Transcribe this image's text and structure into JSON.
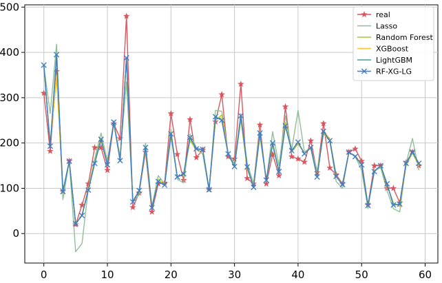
{
  "chart_data": {
    "type": "line",
    "grid": true,
    "legend_position": "top-right",
    "xlim": [
      -3,
      62
    ],
    "ylim": [
      -65,
      505
    ],
    "xticks": [
      0,
      10,
      20,
      30,
      40,
      50,
      60
    ],
    "yticks": [
      0,
      100,
      200,
      300,
      400,
      500
    ],
    "x": [
      0,
      1,
      2,
      3,
      4,
      5,
      6,
      7,
      8,
      9,
      10,
      11,
      12,
      13,
      14,
      15,
      16,
      17,
      18,
      19,
      20,
      21,
      22,
      23,
      24,
      25,
      26,
      27,
      28,
      29,
      30,
      31,
      32,
      33,
      34,
      35,
      36,
      37,
      38,
      39,
      40,
      41,
      42,
      43,
      44,
      45,
      46,
      47,
      48,
      49,
      50,
      51,
      52,
      53,
      54,
      55,
      56,
      57,
      58,
      59
    ],
    "series": [
      {
        "name": "real",
        "color": "#d9565f",
        "marker": "star",
        "values": [
          310,
          182,
          358,
          93,
          160,
          20,
          63,
          110,
          190,
          190,
          140,
          243,
          210,
          480,
          58,
          90,
          180,
          48,
          110,
          112,
          265,
          175,
          118,
          252,
          168,
          185,
          97,
          247,
          307,
          170,
          165,
          330,
          122,
          110,
          240,
          110,
          175,
          128,
          280,
          170,
          165,
          158,
          205,
          135,
          243,
          145,
          130,
          110,
          180,
          187,
          160,
          63,
          150,
          150,
          100,
          100,
          68,
          157,
          180,
          150
        ]
      },
      {
        "name": "Lasso",
        "color": "#8fc095",
        "marker": "none",
        "values": [
          370,
          265,
          418,
          75,
          160,
          -40,
          -22,
          100,
          165,
          222,
          160,
          248,
          170,
          335,
          73,
          85,
          200,
          60,
          128,
          110,
          230,
          120,
          112,
          220,
          190,
          175,
          95,
          272,
          270,
          178,
          155,
          265,
          155,
          110,
          230,
          115,
          225,
          150,
          260,
          185,
          272,
          180,
          190,
          140,
          220,
          205,
          115,
          100,
          180,
          170,
          140,
          55,
          140,
          145,
          95,
          55,
          48,
          155,
          210,
          140
        ]
      },
      {
        "name": "Random Forest",
        "color": "#9acd32",
        "marker": "none",
        "values": [
          368,
          200,
          345,
          95,
          158,
          22,
          40,
          100,
          160,
          210,
          150,
          245,
          162,
          385,
          72,
          95,
          185,
          55,
          120,
          108,
          215,
          125,
          130,
          205,
          185,
          185,
          98,
          250,
          262,
          175,
          150,
          252,
          142,
          105,
          215,
          118,
          195,
          135,
          245,
          180,
          198,
          178,
          188,
          128,
          222,
          210,
          128,
          108,
          178,
          172,
          152,
          62,
          138,
          148,
          108,
          68,
          60,
          150,
          178,
          150
        ]
      },
      {
        "name": "XGBoost",
        "color": "#ffc030",
        "marker": "none",
        "values": [
          370,
          195,
          350,
          95,
          160,
          22,
          42,
          98,
          158,
          205,
          150,
          245,
          162,
          388,
          70,
          95,
          185,
          55,
          118,
          108,
          218,
          125,
          132,
          210,
          185,
          185,
          97,
          255,
          255,
          175,
          148,
          258,
          145,
          103,
          220,
          118,
          198,
          138,
          242,
          182,
          200,
          178,
          188,
          128,
          228,
          208,
          128,
          108,
          178,
          172,
          152,
          62,
          138,
          150,
          110,
          65,
          62,
          152,
          180,
          152
        ]
      },
      {
        "name": "LightGBM",
        "color": "#4a9a9f",
        "marker": "none",
        "values": [
          372,
          192,
          392,
          93,
          160,
          22,
          40,
          96,
          155,
          208,
          152,
          246,
          161,
          388,
          70,
          95,
          190,
          57,
          115,
          107,
          220,
          125,
          132,
          212,
          187,
          186,
          97,
          258,
          250,
          176,
          148,
          260,
          147,
          102,
          222,
          118,
          200,
          137,
          238,
          183,
          202,
          176,
          190,
          125,
          226,
          205,
          126,
          108,
          180,
          170,
          152,
          62,
          137,
          150,
          110,
          63,
          65,
          155,
          180,
          155
        ]
      },
      {
        "name": "RF-XG-LG",
        "color": "#3f7ec1",
        "marker": "x",
        "values": [
          372,
          193,
          395,
          93,
          160,
          22,
          40,
          96,
          155,
          208,
          152,
          246,
          161,
          388,
          70,
          95,
          190,
          57,
          115,
          107,
          220,
          125,
          132,
          212,
          187,
          186,
          97,
          258,
          250,
          176,
          148,
          260,
          147,
          102,
          222,
          118,
          200,
          137,
          238,
          183,
          202,
          176,
          190,
          125,
          226,
          205,
          126,
          108,
          180,
          170,
          152,
          62,
          137,
          150,
          110,
          63,
          65,
          155,
          180,
          155
        ]
      }
    ]
  }
}
